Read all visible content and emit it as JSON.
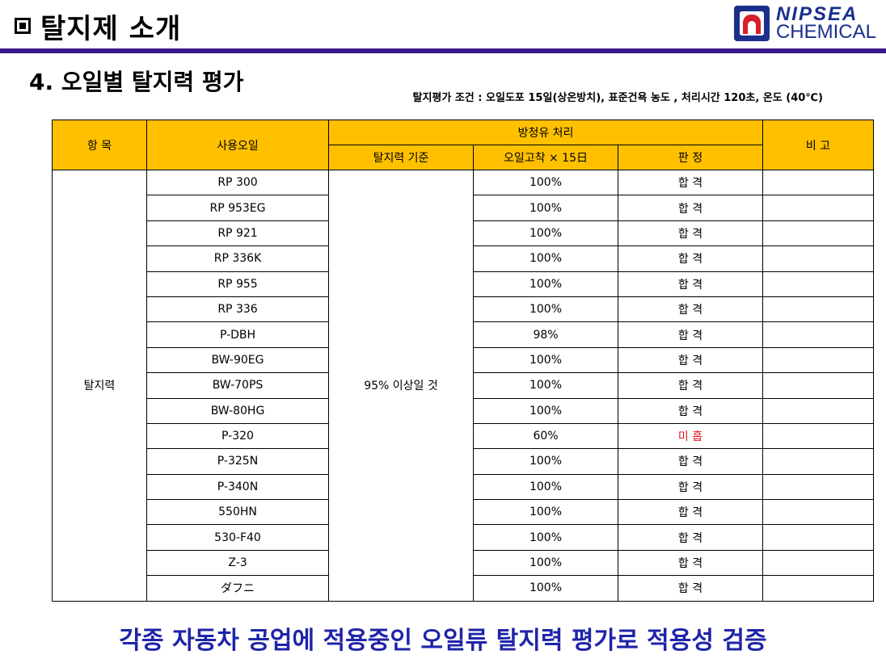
{
  "header": {
    "title": "탈지제 소개",
    "logo": {
      "line1": "NIPSEA",
      "line2": "CHEMICAL",
      "brand_color": "#1a2f8c",
      "accent_color": "#d6202c"
    }
  },
  "section": {
    "title": "4. 오일별 탈지력 평가",
    "condition": "탈지평가 조건 : 오일도포 15일(상온방치), 표준건욕 농도 , 처리시간 120초, 온도 (40℃)"
  },
  "table": {
    "headers": {
      "item": "항 목",
      "oil": "사용오일",
      "group": "방청유 처리",
      "criteria": "탈지력 기준",
      "result": "오일고착 × 15日",
      "judgement": "판 정",
      "remarks": "비 고"
    },
    "item_value": "탈지력",
    "criteria_value": "95% 이상일 것",
    "rows": [
      {
        "oil": "RP 300",
        "result": "100%",
        "judgement": "합 격",
        "remarks": ""
      },
      {
        "oil": "RP 953EG",
        "result": "100%",
        "judgement": "합 격",
        "remarks": ""
      },
      {
        "oil": "RP 921",
        "result": "100%",
        "judgement": "합 격",
        "remarks": ""
      },
      {
        "oil": "RP 336K",
        "result": "100%",
        "judgement": "합 격",
        "remarks": ""
      },
      {
        "oil": "RP 955",
        "result": "100%",
        "judgement": "합 격",
        "remarks": ""
      },
      {
        "oil": "RP 336",
        "result": "100%",
        "judgement": "합 격",
        "remarks": ""
      },
      {
        "oil": "P-DBH",
        "result": "98%",
        "judgement": "합 격",
        "remarks": ""
      },
      {
        "oil": "BW-90EG",
        "result": "100%",
        "judgement": "합 격",
        "remarks": ""
      },
      {
        "oil": "BW-70PS",
        "result": "100%",
        "judgement": "합 격",
        "remarks": ""
      },
      {
        "oil": "BW-80HG",
        "result": "100%",
        "judgement": "합 격",
        "remarks": ""
      },
      {
        "oil": "P-320",
        "result": "60%",
        "judgement": "미 흡",
        "remarks": "",
        "fail": true
      },
      {
        "oil": "P-325N",
        "result": "100%",
        "judgement": "합 격",
        "remarks": ""
      },
      {
        "oil": "P-340N",
        "result": "100%",
        "judgement": "합 격",
        "remarks": ""
      },
      {
        "oil": "550HN",
        "result": "100%",
        "judgement": "합 격",
        "remarks": ""
      },
      {
        "oil": "530-F40",
        "result": "100%",
        "judgement": "합 격",
        "remarks": ""
      },
      {
        "oil": "Z-3",
        "result": "100%",
        "judgement": "합 격",
        "remarks": ""
      },
      {
        "oil": "ダフニ",
        "result": "100%",
        "judgement": "합 격",
        "remarks": ""
      }
    ]
  },
  "footer": {
    "text": "각종 자동차 공업에 적용중인 오일류 탈지력 평가로 적용성 검증"
  },
  "colors": {
    "header_fill": "#ffc000",
    "rule": "#3b1c8c",
    "footer_text": "#1f24a8",
    "fail_text": "#e8141c"
  }
}
